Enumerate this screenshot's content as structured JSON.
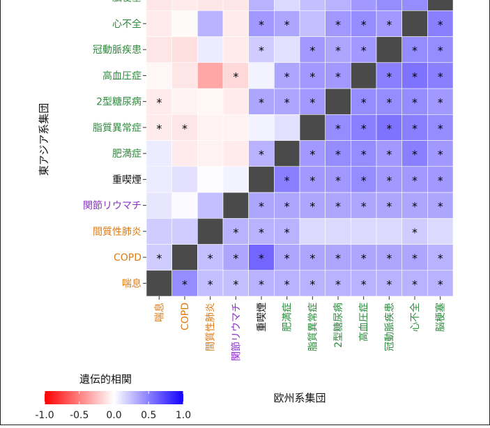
{
  "chart_data": {
    "type": "heatmap",
    "title": "",
    "xlabel": "欧州系集団",
    "ylabel": "東アジア系集団",
    "x_categories": [
      "喘息",
      "COPD",
      "間質性肺炎",
      "関節リウマチ",
      "重喫煙",
      "肥満症",
      "脂質異常症",
      "2型糖尿病",
      "高血圧症",
      "冠動脈疾患",
      "心不全",
      "脳梗塞"
    ],
    "y_categories": [
      "喘息",
      "COPD",
      "間質性肺炎",
      "関節リウマチ",
      "重喫煙",
      "肥満症",
      "脂質異常症",
      "2型糖尿病",
      "高血圧症",
      "冠動脈疾患",
      "心不全",
      "脳梗塞"
    ],
    "category_colors": {
      "respiratory": "#E07A10",
      "autoimmune": "#8B2FC9",
      "smoking": "#111111",
      "metabolic": "#2E8B3E"
    },
    "x_category_groups": [
      "respiratory",
      "respiratory",
      "respiratory",
      "autoimmune",
      "smoking",
      "metabolic",
      "metabolic",
      "metabolic",
      "metabolic",
      "metabolic",
      "metabolic",
      "metabolic"
    ],
    "y_category_groups": [
      "respiratory",
      "respiratory",
      "respiratory",
      "autoimmune",
      "smoking",
      "metabolic",
      "metabolic",
      "metabolic",
      "metabolic",
      "metabolic",
      "metabolic",
      "metabolic"
    ],
    "diagonal_color": "#4a4a4a",
    "values": [
      [
        null,
        0.45,
        0.25,
        0.25,
        0.3,
        0.3,
        0.3,
        0.3,
        0.3,
        0.3,
        0.3,
        0.3
      ],
      [
        0.2,
        null,
        0.25,
        0.35,
        0.6,
        0.35,
        0.35,
        0.35,
        0.35,
        0.35,
        0.35,
        0.3
      ],
      [
        0.2,
        0.2,
        null,
        0.3,
        0.3,
        0.3,
        0.15,
        0.15,
        0.15,
        0.15,
        0.2,
        0.15
      ],
      [
        0.1,
        0.02,
        0.25,
        null,
        0.35,
        0.35,
        0.35,
        0.35,
        0.35,
        0.35,
        0.35,
        0.35
      ],
      [
        0.08,
        0.12,
        0.01,
        0.05,
        null,
        0.5,
        0.4,
        0.4,
        0.45,
        0.4,
        0.4,
        0.4
      ],
      [
        0.08,
        -0.08,
        -0.05,
        -0.08,
        0.3,
        null,
        0.4,
        0.45,
        0.45,
        0.4,
        0.5,
        0.4
      ],
      [
        -0.08,
        -0.1,
        -0.05,
        -0.05,
        0.05,
        0.12,
        null,
        0.45,
        0.5,
        0.55,
        0.5,
        0.45
      ],
      [
        -0.08,
        -0.05,
        -0.03,
        -0.08,
        0.35,
        0.35,
        0.4,
        null,
        0.45,
        0.45,
        0.45,
        0.4
      ],
      [
        -0.03,
        -0.1,
        -0.35,
        -0.15,
        0.05,
        0.35,
        0.4,
        0.4,
        null,
        0.5,
        0.55,
        0.5
      ],
      [
        -0.1,
        -0.12,
        0.08,
        -0.08,
        0.2,
        0.12,
        0.4,
        0.35,
        0.4,
        null,
        0.45,
        0.45
      ],
      [
        -0.08,
        -0.02,
        0.3,
        -0.08,
        0.4,
        0.35,
        0.25,
        0.4,
        0.45,
        0.4,
        null,
        0.5
      ],
      [
        -0.1,
        -0.08,
        -0.1,
        -0.1,
        0.3,
        0.15,
        0.25,
        0.3,
        0.4,
        0.45,
        0.45,
        null
      ]
    ],
    "significant": [
      [
        false,
        true,
        true,
        true,
        true,
        true,
        true,
        true,
        true,
        true,
        true,
        true
      ],
      [
        true,
        false,
        true,
        true,
        true,
        true,
        true,
        true,
        true,
        true,
        true,
        true
      ],
      [
        false,
        false,
        false,
        true,
        true,
        true,
        false,
        false,
        false,
        false,
        true,
        false
      ],
      [
        false,
        false,
        false,
        false,
        true,
        true,
        true,
        true,
        true,
        true,
        true,
        true
      ],
      [
        false,
        false,
        false,
        false,
        false,
        true,
        true,
        true,
        true,
        true,
        true,
        true
      ],
      [
        false,
        false,
        false,
        false,
        true,
        false,
        true,
        true,
        true,
        true,
        true,
        true
      ],
      [
        true,
        true,
        false,
        false,
        false,
        false,
        false,
        true,
        true,
        true,
        true,
        true
      ],
      [
        true,
        false,
        false,
        false,
        true,
        true,
        true,
        false,
        true,
        true,
        true,
        true
      ],
      [
        false,
        false,
        false,
        true,
        false,
        true,
        true,
        true,
        false,
        true,
        true,
        true
      ],
      [
        false,
        false,
        false,
        false,
        true,
        false,
        true,
        true,
        true,
        false,
        true,
        true
      ],
      [
        false,
        false,
        false,
        false,
        true,
        true,
        false,
        true,
        true,
        true,
        false,
        true
      ],
      [
        false,
        false,
        false,
        false,
        false,
        false,
        false,
        false,
        false,
        false,
        false,
        false
      ]
    ],
    "significance_marker": "*",
    "legend": {
      "title": "遺伝的相関",
      "range": [
        -1.0,
        1.0
      ],
      "ticks": [
        "-1.0",
        "-0.5",
        "0.0",
        "0.5",
        "1.0"
      ],
      "colors": {
        "low": "#FF0000",
        "mid": "#FFFFFF",
        "high": "#1400FF"
      }
    },
    "grid": true
  }
}
